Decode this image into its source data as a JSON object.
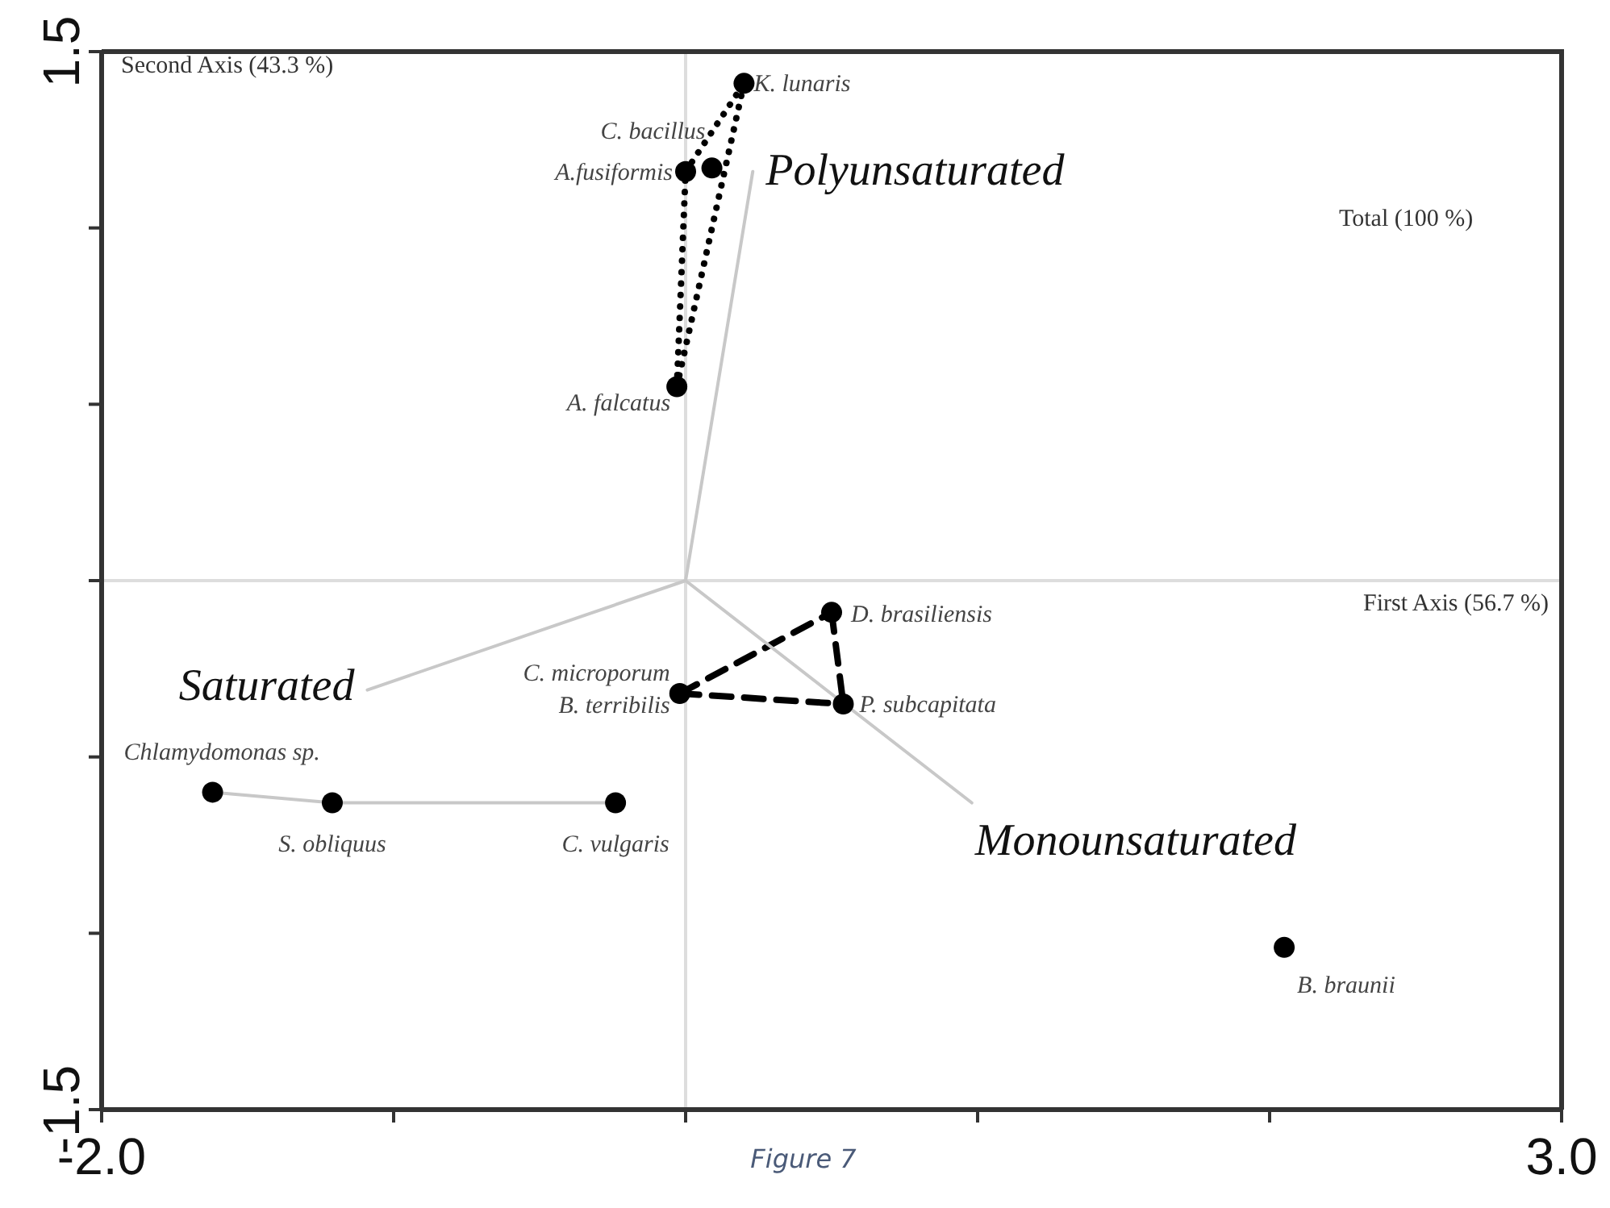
{
  "chart_data": {
    "type": "scatter",
    "xlim": [
      -2,
      3
    ],
    "ylim": [
      -1.5,
      1.5
    ],
    "xticks": [
      {
        "value": -2,
        "label": "-2.0"
      },
      {
        "value": -1,
        "label": null
      },
      {
        "value": 0,
        "label": null
      },
      {
        "value": 1,
        "label": null
      },
      {
        "value": 2,
        "label": null
      },
      {
        "value": 3,
        "label": "3.0"
      }
    ],
    "yticks": [
      {
        "value": -1.5,
        "label": "-1.5"
      },
      {
        "value": -1,
        "label": null
      },
      {
        "value": -0.5,
        "label": null
      },
      {
        "value": 0,
        "label": null
      },
      {
        "value": 0.5,
        "label": null
      },
      {
        "value": 1,
        "label": null
      },
      {
        "value": 1.5,
        "label": "1.5"
      }
    ],
    "grid": false,
    "series": [
      {
        "type": "line",
        "line_style": "dotted",
        "marker": "none",
        "color": "#000000",
        "x": [
          -0.03,
          0.0
        ],
        "values": [
          0.55,
          1.16
        ]
      },
      {
        "type": "line",
        "line_style": "dotted",
        "marker": "none",
        "color": "#000000",
        "x": [
          0.0,
          0.2
        ],
        "values": [
          1.16,
          1.41
        ]
      },
      {
        "type": "line",
        "line_style": "dotted",
        "marker": "none",
        "color": "#000000",
        "x": [
          -0.03,
          0.2
        ],
        "values": [
          0.55,
          1.41
        ]
      },
      {
        "type": "line",
        "line_style": "dashed",
        "marker": "none",
        "color": "#000000",
        "x": [
          -0.02,
          0.5
        ],
        "values": [
          -0.32,
          -0.09
        ]
      },
      {
        "type": "line",
        "line_style": "dashed",
        "marker": "none",
        "color": "#000000",
        "x": [
          0.5,
          0.54
        ],
        "values": [
          -0.09,
          -0.35
        ]
      },
      {
        "type": "line",
        "line_style": "dashed",
        "marker": "none",
        "color": "#000000",
        "x": [
          -0.02,
          0.54
        ],
        "values": [
          -0.32,
          -0.35
        ]
      },
      {
        "type": "line",
        "line_style": "solid",
        "marker": "none",
        "color": "#c8c8c8",
        "x": [
          -1.62,
          -1.21,
          -0.24
        ],
        "values": [
          -0.6,
          -0.63,
          -0.63
        ]
      },
      {
        "type": "line",
        "line_style": "solid",
        "marker": "none",
        "color": "#c8c8c8",
        "x": [
          0,
          0.23
        ],
        "values": [
          0,
          1.16
        ]
      },
      {
        "type": "line",
        "line_style": "solid",
        "marker": "none",
        "color": "#c8c8c8",
        "x": [
          0,
          -1.09
        ],
        "values": [
          0,
          -0.31
        ]
      },
      {
        "type": "line",
        "line_style": "solid",
        "marker": "none",
        "color": "#c8c8c8",
        "x": [
          0,
          0.98
        ],
        "values": [
          0,
          -0.63
        ]
      },
      {
        "marker": "circle",
        "color": "#000000",
        "x": [
          0.2,
          0.09,
          0.0,
          -0.03,
          0.5,
          0.54,
          -0.02,
          -1.62,
          -1.21,
          -0.24,
          2.05
        ],
        "values": [
          1.41,
          1.17,
          1.16,
          0.55,
          -0.09,
          -0.35,
          -0.32,
          -0.6,
          -0.63,
          -0.63,
          -1.04
        ]
      }
    ],
    "ref_lines": [
      {
        "axis": "y",
        "value": 0,
        "label": "First Axis (56.7 %)",
        "color": "#dddddd"
      },
      {
        "axis": "x",
        "value": 0,
        "color": "#dddddd"
      }
    ],
    "annotations": [
      {
        "text": "K. lunaris",
        "x": 0.2,
        "y": 1.41
      },
      {
        "text": "C. bacillus",
        "x": 0.09,
        "y": 1.17
      },
      {
        "text": "A.fusiformis",
        "x": 0.0,
        "y": 1.16
      },
      {
        "text": "A. falcatus",
        "x": -0.03,
        "y": 0.55
      },
      {
        "text": "D. brasiliensis",
        "x": 0.5,
        "y": -0.09
      },
      {
        "text": "P. subcapitata",
        "x": 0.54,
        "y": -0.35
      },
      {
        "text": "C. microporum",
        "x": -0.02,
        "y": -0.32
      },
      {
        "text": "B. terribilis",
        "x": -0.02,
        "y": -0.32
      },
      {
        "text": "Chlamydomonas sp.",
        "x": -1.62,
        "y": -0.6
      },
      {
        "text": "S. obliquus",
        "x": -1.21,
        "y": -0.63
      },
      {
        "text": "C. vulgaris",
        "x": -0.24,
        "y": -0.63
      },
      {
        "text": "B. braunii",
        "x": 2.05,
        "y": -1.04
      },
      {
        "text": "Polyunsaturated",
        "x": 0.23,
        "y": 1.16
      },
      {
        "text": "Saturated",
        "x": -1.09,
        "y": -0.31
      },
      {
        "text": "Monounsaturated",
        "x": 0.98,
        "y": -0.63
      },
      "Second Axis (43.3 %)",
      "Total (100 %)",
      "Figure 7"
    ]
  }
}
